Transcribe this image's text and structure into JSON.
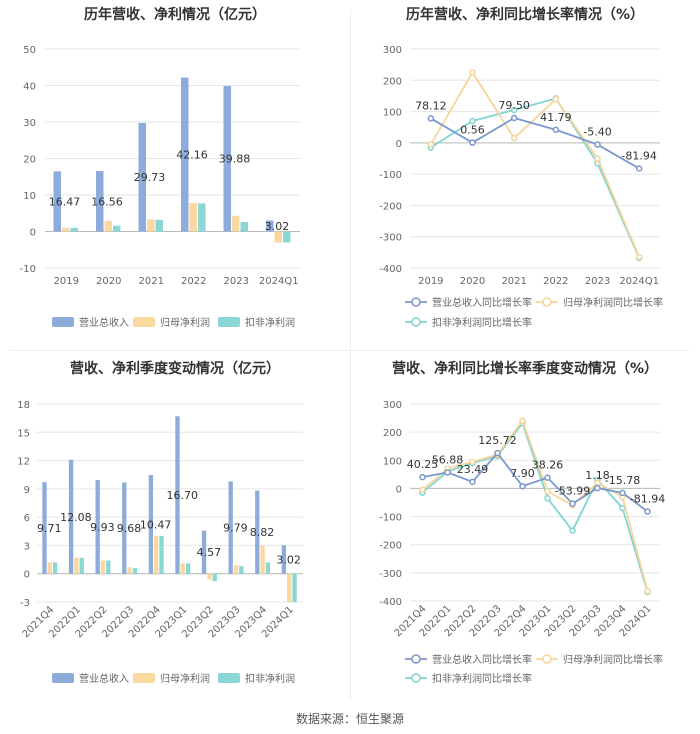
{
  "source": "数据来源：恒生聚源",
  "colors": {
    "rev": "#8EACDB",
    "net": "#F9D8A1",
    "deduct": "#8BD7D6",
    "rev_line": "#7B98CC",
    "net_line": "#F6D49A",
    "deduct_line": "#7FD6D0"
  },
  "chart_data": [
    {
      "type": "bar",
      "title": "历年营收、净利情况（亿元）",
      "categories": [
        "2019",
        "2020",
        "2021",
        "2022",
        "2023",
        "2024Q1"
      ],
      "ylim": [
        -10,
        50
      ],
      "yticks": [
        "-10",
        "0",
        "10",
        "20",
        "30",
        "40",
        "50"
      ],
      "series": [
        {
          "name": "营业总收入",
          "values": [
            16.47,
            16.56,
            29.73,
            42.16,
            39.88,
            3.02
          ],
          "labels": [
            "16.47",
            "16.56",
            "29.73",
            "42.16",
            "39.88",
            "3.02"
          ]
        },
        {
          "name": "归母净利润",
          "values": [
            1.0,
            2.9,
            3.3,
            7.8,
            4.3,
            -3.0
          ]
        },
        {
          "name": "扣非净利润",
          "values": [
            1.0,
            1.6,
            3.2,
            7.7,
            2.6,
            -3.0
          ]
        }
      ],
      "legend": "bottom"
    },
    {
      "type": "line",
      "title": "历年营收、净利同比增长率情况（%）",
      "categories": [
        "2019",
        "2020",
        "2021",
        "2022",
        "2023",
        "2024Q1"
      ],
      "ylim": [
        -400,
        300
      ],
      "yticks": [
        "-400",
        "-300",
        "-200",
        "-100",
        "0",
        "100",
        "200",
        "300"
      ],
      "series": [
        {
          "name": "营业总收入同比增长率",
          "values": [
            78.12,
            0.56,
            79.5,
            41.79,
            -5.4,
            -81.94
          ],
          "labels": [
            "78.12",
            "0.56",
            "79.50",
            "41.79",
            "-5.40",
            "-81.94"
          ]
        },
        {
          "name": "归母净利润同比增长率",
          "values": [
            -5,
            225,
            15,
            140,
            -50,
            -365
          ]
        },
        {
          "name": "扣非净利润同比增长率",
          "values": [
            -15,
            70,
            105,
            142,
            -65,
            -368
          ]
        }
      ],
      "legend": "bottom"
    },
    {
      "type": "bar",
      "title": "营收、净利季度变动情况（亿元）",
      "categories": [
        "2021Q4",
        "2022Q1",
        "2022Q2",
        "2022Q3",
        "2022Q4",
        "2023Q1",
        "2023Q2",
        "2023Q3",
        "2023Q4",
        "2024Q1"
      ],
      "ylim": [
        -3,
        18
      ],
      "yticks": [
        "-3",
        "0",
        "3",
        "6",
        "9",
        "12",
        "15",
        "18"
      ],
      "series": [
        {
          "name": "营业总收入",
          "values": [
            9.71,
            12.08,
            9.93,
            9.68,
            10.47,
            16.7,
            4.57,
            9.79,
            8.82,
            3.02
          ],
          "labels": [
            "9.71",
            "12.08",
            "9.93",
            "9.68",
            "10.47",
            "16.70",
            "4.57",
            "9.79",
            "8.82",
            "3.02"
          ]
        },
        {
          "name": "归母净利润",
          "values": [
            1.2,
            1.7,
            1.4,
            0.7,
            4.0,
            1.1,
            -0.6,
            0.9,
            3.0,
            -3.0
          ]
        },
        {
          "name": "扣非净利润",
          "values": [
            1.2,
            1.7,
            1.4,
            0.6,
            4.0,
            1.1,
            -0.8,
            0.8,
            1.2,
            -3.0
          ]
        }
      ],
      "legend": "bottom"
    },
    {
      "type": "line",
      "title": "营收、净利同比增长率季度变动情况（%）",
      "categories": [
        "2021Q4",
        "2022Q1",
        "2022Q2",
        "2022Q3",
        "2022Q4",
        "2023Q1",
        "2023Q2",
        "2023Q3",
        "2023Q4",
        "2024Q1"
      ],
      "ylim": [
        -400,
        300
      ],
      "yticks": [
        "-400",
        "-300",
        "-200",
        "-100",
        "0",
        "100",
        "200",
        "300"
      ],
      "series": [
        {
          "name": "营业总收入同比增长率",
          "values": [
            40.25,
            56.88,
            23.49,
            125.72,
            7.9,
            38.26,
            -53.99,
            1.18,
            -15.78,
            -81.94
          ],
          "labels": [
            "40.25",
            "56.88",
            "23.49",
            "125.72",
            "7.90",
            "38.26",
            "-53.99",
            "1.18",
            "-15.78",
            "-81.94"
          ]
        },
        {
          "name": "归母净利润同比增长率",
          "values": [
            -5,
            70,
            95,
            120,
            240,
            -10,
            -60,
            20,
            -30,
            -365
          ]
        },
        {
          "name": "扣非净利润同比增长率",
          "values": [
            -15,
            60,
            90,
            115,
            232,
            -35,
            -150,
            30,
            -70,
            -368
          ]
        }
      ],
      "legend": "bottom"
    }
  ]
}
